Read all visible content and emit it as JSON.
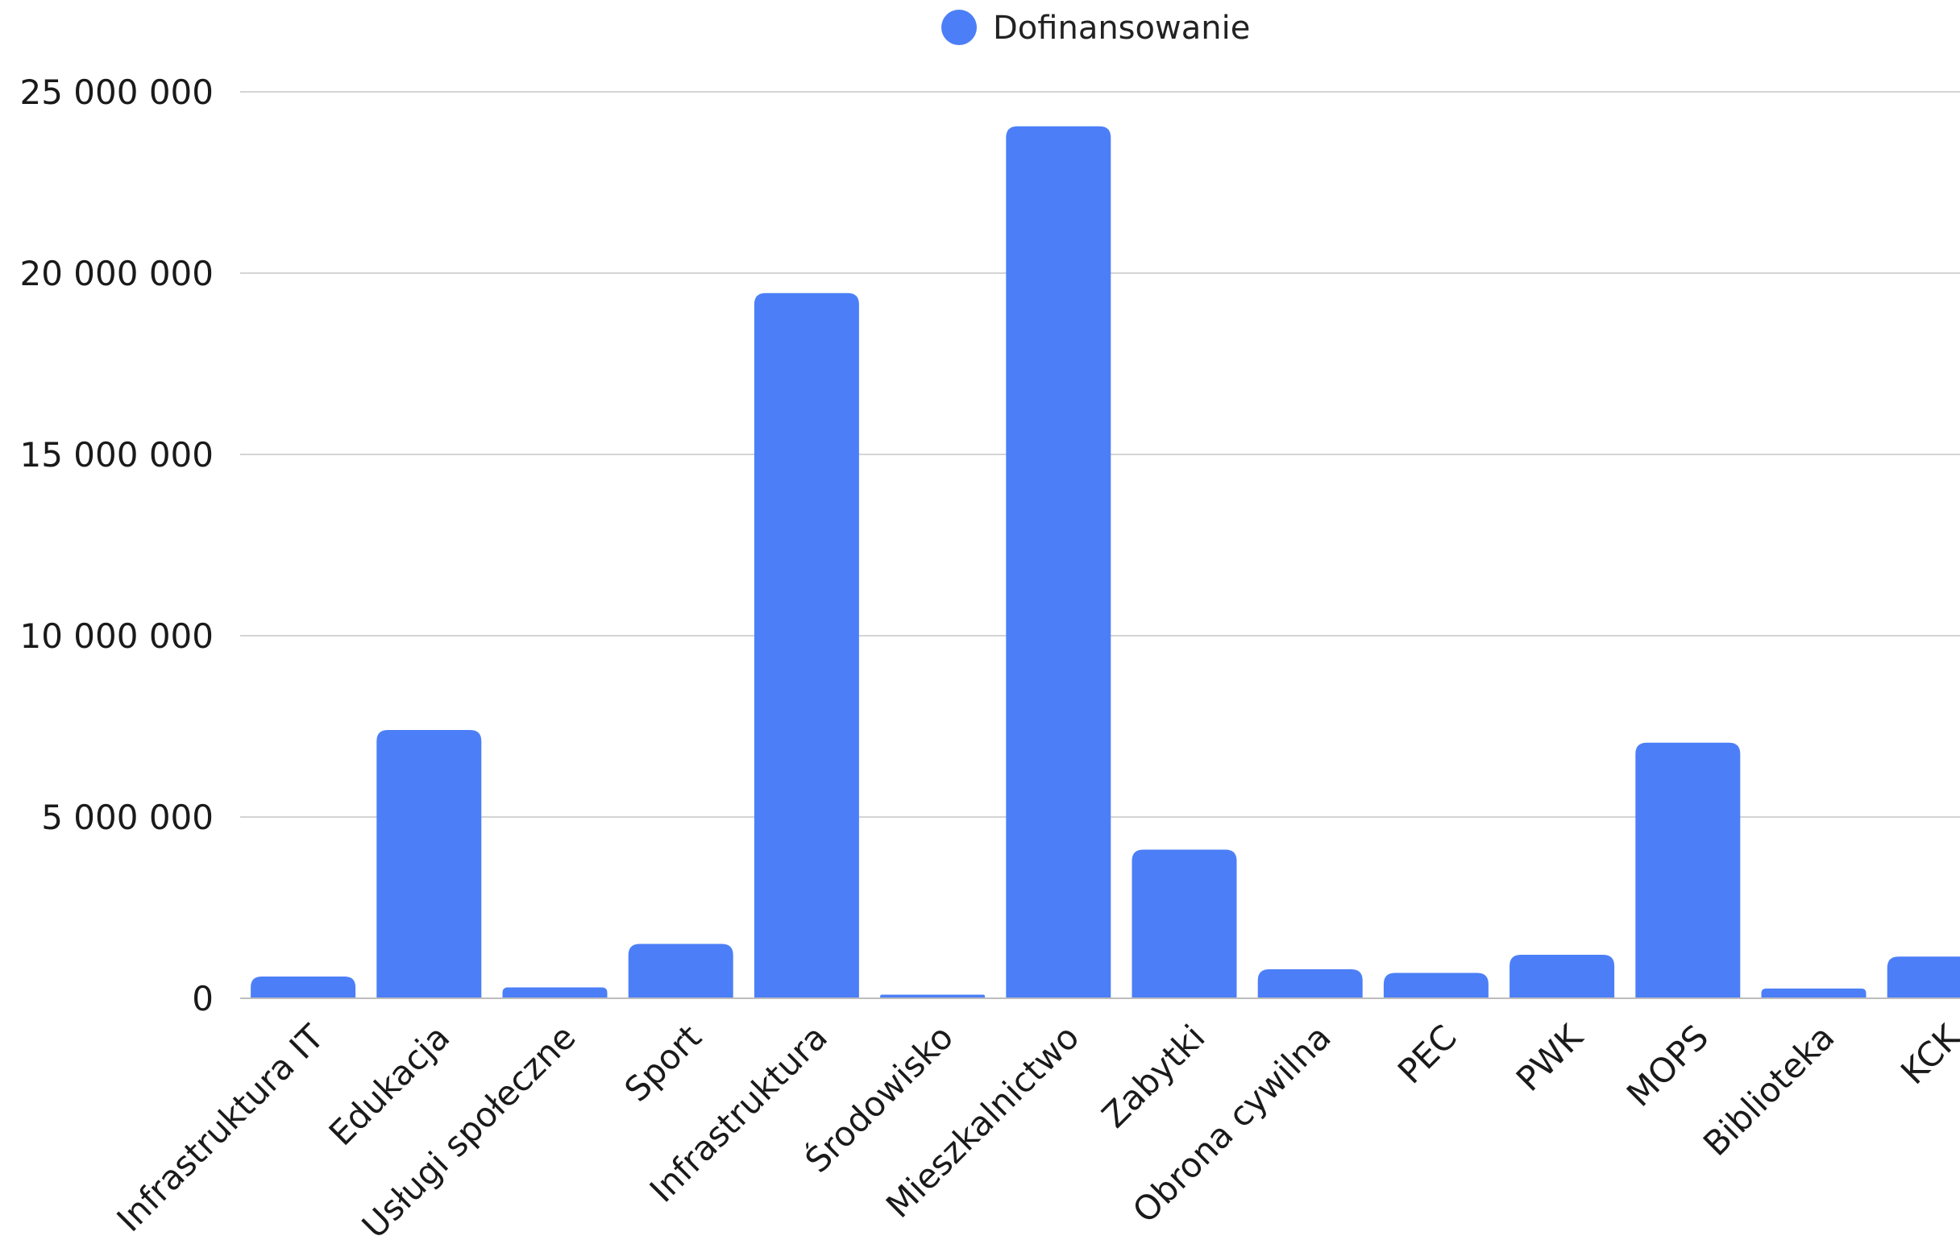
{
  "chart_data": {
    "type": "bar",
    "title": "",
    "xlabel": "",
    "ylabel": "",
    "legend_position": "top-center",
    "grid": true,
    "ylim": [
      0,
      25000000
    ],
    "y_ticks": [
      0,
      5000000,
      10000000,
      15000000,
      20000000,
      25000000
    ],
    "y_tick_labels": [
      "0",
      "5 000 000",
      "10 000 000",
      "15 000 000",
      "20 000 000",
      "25 000 000"
    ],
    "categories": [
      "Infrastruktura IT",
      "Edukacja",
      "Usługi społeczne",
      "Sport",
      "Infrastruktura",
      "Środowisko",
      "Mieszkalnictwo",
      "Zabytki",
      "Obrona cywilna",
      "PEC",
      "PWK",
      "MOPS",
      "Biblioteka",
      "KCK"
    ],
    "series": [
      {
        "name": "Dofinansowanie",
        "color": "#4c7ff7",
        "values": [
          600000,
          7400000,
          300000,
          1500000,
          19450000,
          100000,
          24050000,
          4100000,
          800000,
          700000,
          1200000,
          7050000,
          270000,
          1150000
        ]
      }
    ]
  }
}
